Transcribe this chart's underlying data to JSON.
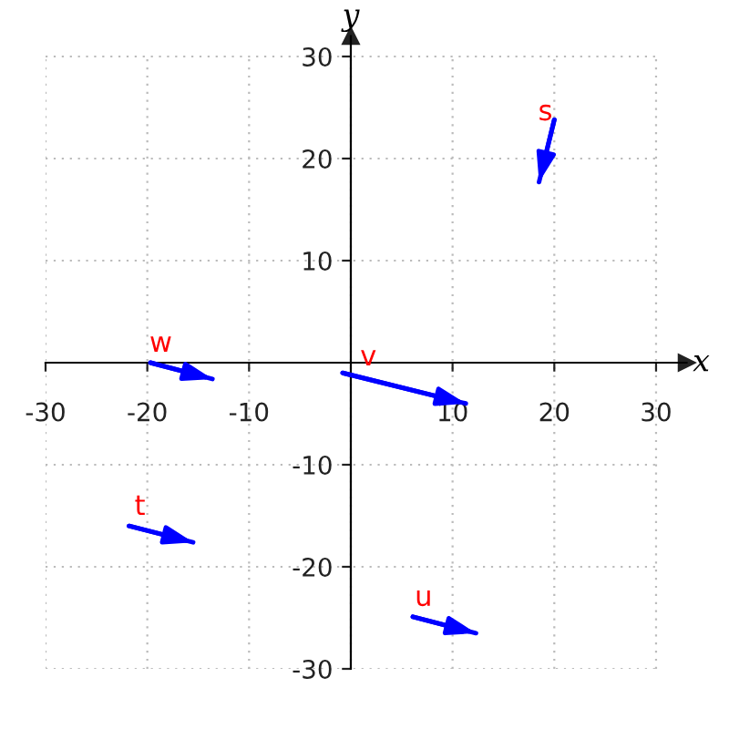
{
  "chart_data": {
    "type": "line",
    "xlabel": "x",
    "ylabel": "y",
    "series": [
      {
        "name": "s",
        "color": "#0000ff",
        "x": [
          20.0,
          18.5
        ],
        "values": [
          23.8,
          17.7
        ]
      },
      {
        "name": "t",
        "color": "#0000ff",
        "x": [
          -21.8,
          -15.5
        ],
        "values": [
          -16.0,
          -17.6
        ]
      },
      {
        "name": "u",
        "color": "#0000ff",
        "x": [
          6.1,
          12.3
        ],
        "values": [
          -24.9,
          -26.5
        ]
      },
      {
        "name": "v",
        "color": "#0000ff",
        "x": [
          -0.8,
          11.3
        ],
        "values": [
          -1.0,
          -4.0
        ]
      },
      {
        "name": "w",
        "color": "#0000ff",
        "x": [
          -19.7,
          -13.6
        ],
        "values": [
          0.0,
          -1.6
        ]
      }
    ],
    "xlim": [
      -30,
      33
    ],
    "ylim": [
      -30,
      32
    ],
    "xticks": [
      {
        "value": -30,
        "label": "-30"
      },
      {
        "value": -20,
        "label": "-20"
      },
      {
        "value": -10,
        "label": "-10"
      },
      10,
      20,
      30
    ],
    "yticks": [
      {
        "value": -30,
        "label": "-30"
      },
      {
        "value": -20,
        "label": "-20"
      },
      {
        "value": -10,
        "label": "-10"
      },
      10,
      20,
      30
    ],
    "grid": true,
    "marker": "none",
    "line_style": "solid"
  }
}
